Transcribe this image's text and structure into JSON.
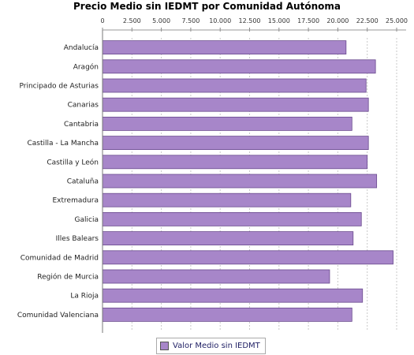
{
  "chart_data": {
    "type": "bar",
    "orientation": "horizontal",
    "title": "Precio Medio sin IEDMT por Comunidad Autónoma",
    "categories": [
      "Andalucía",
      "Aragón",
      "Principado de Asturias",
      "Canarias",
      "Cantabria",
      "Castilla - La Mancha",
      "Castilla y León",
      "Cataluña",
      "Extremadura",
      "Galicia",
      "Illes Balears",
      "Comunidad de Madrid",
      "Región de Murcia",
      "La Rioja",
      "Comunidad Valenciana"
    ],
    "series": [
      {
        "name": "Valor Medio sin IEDMT",
        "values": [
          20700,
          23200,
          22400,
          22600,
          21200,
          22600,
          22500,
          23300,
          21100,
          22000,
          21300,
          24700,
          19300,
          22100,
          21200
        ]
      }
    ],
    "xlim": [
      0,
      25000
    ],
    "xticks": [
      "0",
      "2.500",
      "5.000",
      "7.500",
      "10.000",
      "12.500",
      "15.000",
      "17.500",
      "20.000",
      "22.500",
      "25.000"
    ],
    "grid": true,
    "legend_position": "bottom",
    "bar_color": "#a786c9",
    "bar_edge_color": "#6a4a8e"
  }
}
